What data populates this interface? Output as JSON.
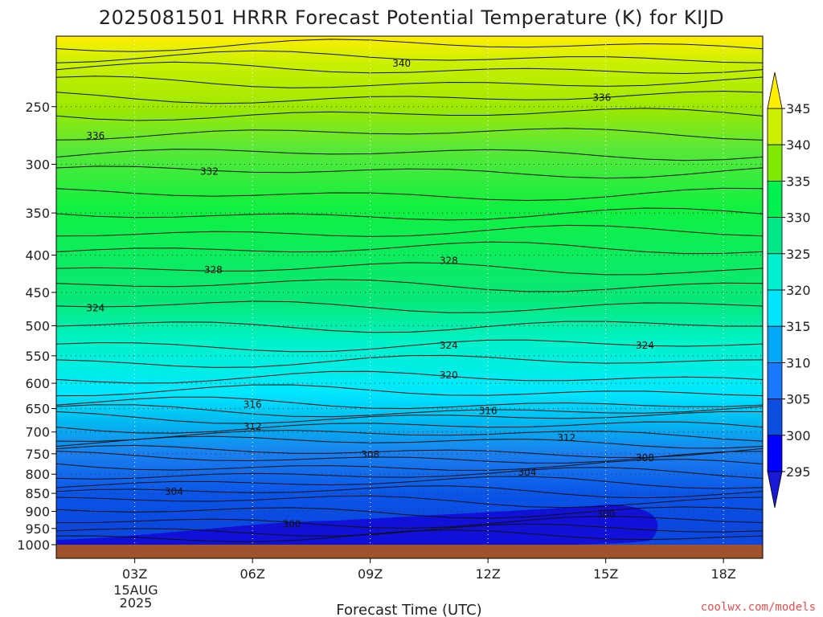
{
  "chart_data": {
    "type": "heatmap",
    "title": "2025081501 HRRR Forecast Potential Temperature (K) for KIJD",
    "xlabel": "Forecast Time (UTC)",
    "ylabel": "",
    "credit": "coolwx.com/models",
    "x_ticks": [
      "03Z",
      "06Z",
      "09Z",
      "12Z",
      "15Z",
      "18Z"
    ],
    "x_tick_hours": [
      3,
      6,
      9,
      12,
      15,
      18
    ],
    "xlim": [
      1,
      19
    ],
    "date_label": [
      "15AUG",
      "2025"
    ],
    "y_ticks": [
      250,
      300,
      350,
      400,
      450,
      500,
      550,
      600,
      650,
      700,
      750,
      800,
      850,
      900,
      950,
      1000
    ],
    "ylim": [
      200,
      1000
    ],
    "y_scale": "log",
    "colorbar": {
      "levels": [
        295,
        300,
        305,
        310,
        315,
        320,
        325,
        330,
        335,
        340,
        345
      ],
      "colors": [
        "#1a1ad6",
        "#0000ff",
        "#0a4ee0",
        "#1a78ff",
        "#00a8f5",
        "#00e5ff",
        "#00f0d0",
        "#00e88a",
        "#00f050",
        "#7fea00",
        "#ccf000",
        "#ffee00"
      ],
      "extend": "both"
    },
    "contour_labels": [
      {
        "value": 340,
        "x": 9.8,
        "p": 218
      },
      {
        "value": 336,
        "x": 14.9,
        "p": 243
      },
      {
        "value": 336,
        "x": 2.0,
        "p": 274
      },
      {
        "value": 332,
        "x": 4.9,
        "p": 307
      },
      {
        "value": 328,
        "x": 5.0,
        "p": 419
      },
      {
        "value": 328,
        "x": 11.0,
        "p": 407
      },
      {
        "value": 324,
        "x": 2.0,
        "p": 473
      },
      {
        "value": 324,
        "x": 11.0,
        "p": 532
      },
      {
        "value": 324,
        "x": 16.0,
        "p": 532
      },
      {
        "value": 320,
        "x": 11.0,
        "p": 585
      },
      {
        "value": 316,
        "x": 6.0,
        "p": 642
      },
      {
        "value": 316,
        "x": 12.0,
        "p": 655
      },
      {
        "value": 312,
        "x": 6.0,
        "p": 688
      },
      {
        "value": 312,
        "x": 14.0,
        "p": 713
      },
      {
        "value": 308,
        "x": 9.0,
        "p": 752
      },
      {
        "value": 308,
        "x": 16.0,
        "p": 760
      },
      {
        "value": 304,
        "x": 4.0,
        "p": 845
      },
      {
        "value": 304,
        "x": 13.0,
        "p": 795
      },
      {
        "value": 300,
        "x": 7.0,
        "p": 937
      },
      {
        "value": 300,
        "x": 15.0,
        "p": 908
      }
    ],
    "grid": "dotted",
    "colorbar_position": "right"
  }
}
